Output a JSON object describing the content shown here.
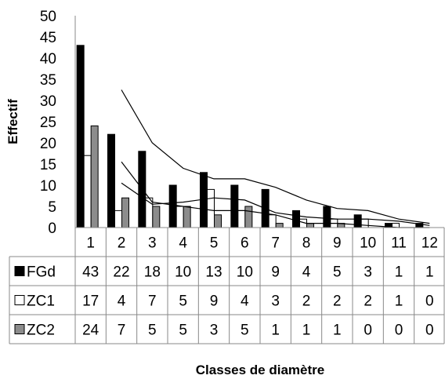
{
  "chart_data": {
    "type": "bar",
    "title": "",
    "xlabel": "Classes de diamètre",
    "ylabel": "Effectif",
    "ylim": [
      0,
      50
    ],
    "y_ticks": [
      0,
      5,
      10,
      15,
      20,
      25,
      30,
      35,
      40,
      45,
      50
    ],
    "categories": [
      "1",
      "2",
      "3",
      "4",
      "5",
      "6",
      "7",
      "8",
      "9",
      "10",
      "11",
      "12"
    ],
    "series": [
      {
        "name": "FGd",
        "color": "#000000",
        "values": [
          43,
          22,
          18,
          10,
          13,
          10,
          9,
          4,
          5,
          3,
          1,
          1
        ]
      },
      {
        "name": "ZC1",
        "color": "#ffffff",
        "values": [
          17,
          4,
          7,
          5,
          9,
          4,
          3,
          2,
          2,
          2,
          1,
          0
        ]
      },
      {
        "name": "ZC2",
        "color": "#8c8c8c",
        "values": [
          24,
          7,
          5,
          5,
          3,
          5,
          1,
          1,
          1,
          0,
          0,
          0
        ]
      }
    ],
    "trendlines": "moving average (2 periods) for each series",
    "data_table": true,
    "grid": false,
    "legend": "in data table"
  }
}
